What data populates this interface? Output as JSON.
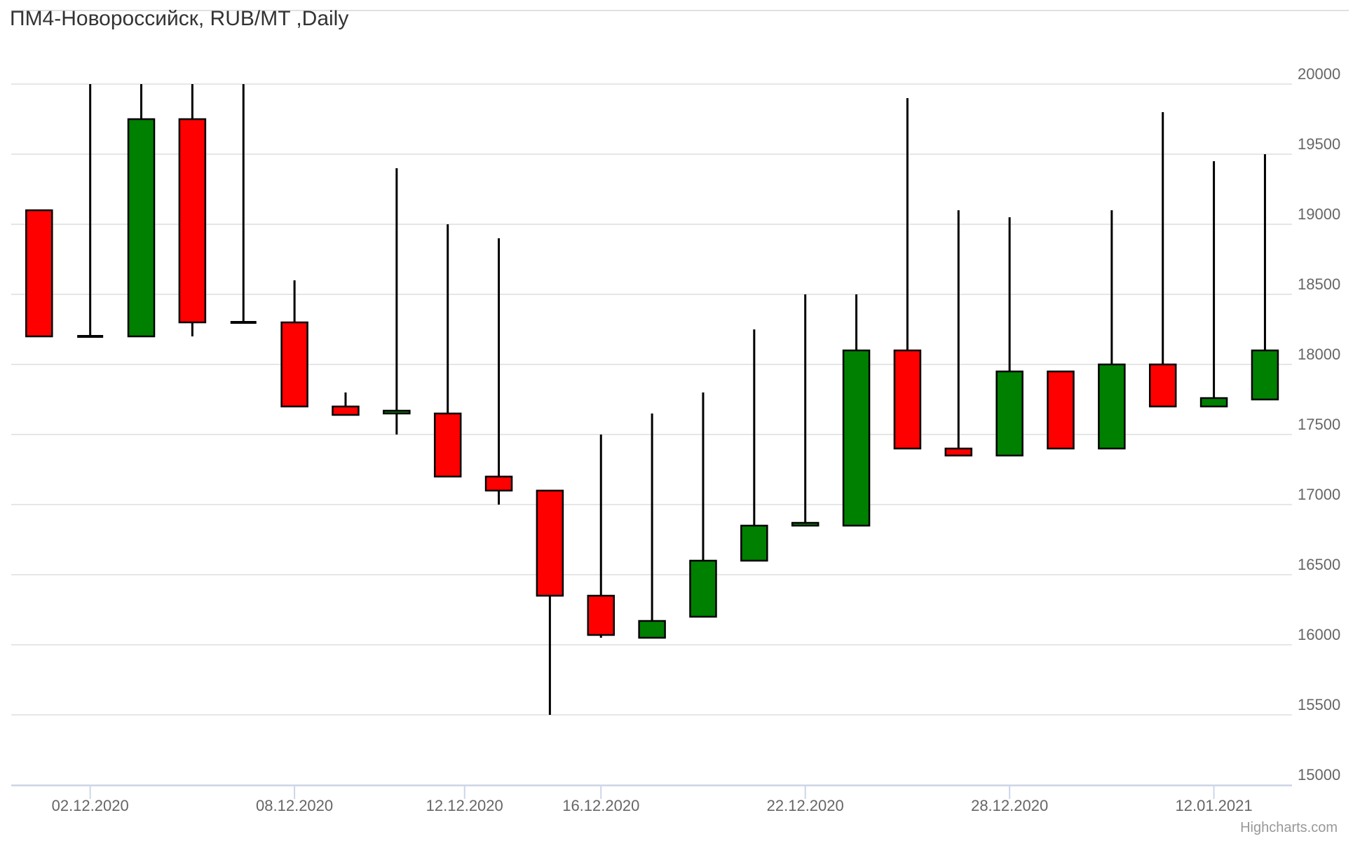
{
  "chart_title": "ПМ4-Новороссийск, RUB/MT ,Daily",
  "credits": "Highcharts.com",
  "colors": {
    "background": "#ffffff",
    "up_body": "#008000",
    "down_body": "#ff0000",
    "wick": "#000000",
    "body_border": "#000000",
    "gridline": "#e6e6e6",
    "axis_line": "#ccd6eb",
    "axis_label_text": "#666666",
    "title_text": "#333333",
    "credits_text": "#999999"
  },
  "chart_data": {
    "type": "candlestick",
    "title": "ПМ4-Новороссийск, RUB/MT ,Daily",
    "ylabel": "",
    "xlabel": "",
    "grid": true,
    "ylim": [
      15000,
      20000
    ],
    "y_tick_step": 500,
    "y_tick_labels": [
      "15000",
      "15500",
      "16000",
      "16500",
      "17000",
      "17500",
      "18000",
      "18500",
      "19000",
      "19500",
      "20000"
    ],
    "x_ticks": [
      {
        "label": "02.12.2020",
        "candle_index": 1
      },
      {
        "label": "08.12.2020",
        "candle_index": 5
      },
      {
        "label": "12.12.2020",
        "candle_index": 8.33
      },
      {
        "label": "16.12.2020",
        "candle_index": 11
      },
      {
        "label": "22.12.2020",
        "candle_index": 15
      },
      {
        "label": "28.12.2020",
        "candle_index": 19
      },
      {
        "label": "12.01.2021",
        "candle_index": 23
      }
    ],
    "candles": [
      {
        "open": 19100,
        "high": 19100,
        "low": 18200,
        "close": 18200
      },
      {
        "open": 18200,
        "high": 20000,
        "low": 18200,
        "close": 18200
      },
      {
        "open": 18200,
        "high": 20000,
        "low": 18200,
        "close": 19750
      },
      {
        "open": 19750,
        "high": 20000,
        "low": 18200,
        "close": 18300
      },
      {
        "open": 18300,
        "high": 20000,
        "low": 18300,
        "close": 18300
      },
      {
        "open": 18300,
        "high": 18600,
        "low": 17700,
        "close": 17700
      },
      {
        "open": 17700,
        "high": 17800,
        "low": 17640,
        "close": 17640
      },
      {
        "open": 17650,
        "high": 19400,
        "low": 17500,
        "close": 17670
      },
      {
        "open": 17650,
        "high": 19000,
        "low": 17200,
        "close": 17200
      },
      {
        "open": 17200,
        "high": 18900,
        "low": 17000,
        "close": 17100
      },
      {
        "open": 17100,
        "high": 17100,
        "low": 15500,
        "close": 16350
      },
      {
        "open": 16350,
        "high": 17500,
        "low": 16050,
        "close": 16070
      },
      {
        "open": 16050,
        "high": 17650,
        "low": 16050,
        "close": 16170
      },
      {
        "open": 16200,
        "high": 17800,
        "low": 16200,
        "close": 16600
      },
      {
        "open": 16600,
        "high": 18250,
        "low": 16600,
        "close": 16850
      },
      {
        "open": 16850,
        "high": 18500,
        "low": 16850,
        "close": 16870
      },
      {
        "open": 16850,
        "high": 18500,
        "low": 16850,
        "close": 18100
      },
      {
        "open": 18100,
        "high": 19900,
        "low": 17400,
        "close": 17400
      },
      {
        "open": 17400,
        "high": 19100,
        "low": 17350,
        "close": 17350
      },
      {
        "open": 17350,
        "high": 19050,
        "low": 17350,
        "close": 17950
      },
      {
        "open": 17950,
        "high": 17950,
        "low": 17400,
        "close": 17400
      },
      {
        "open": 17400,
        "high": 19100,
        "low": 17400,
        "close": 18000
      },
      {
        "open": 18000,
        "high": 19800,
        "low": 17700,
        "close": 17700
      },
      {
        "open": 17700,
        "high": 19450,
        "low": 17700,
        "close": 17760
      },
      {
        "open": 17750,
        "high": 19500,
        "low": 17750,
        "close": 18100
      }
    ]
  }
}
